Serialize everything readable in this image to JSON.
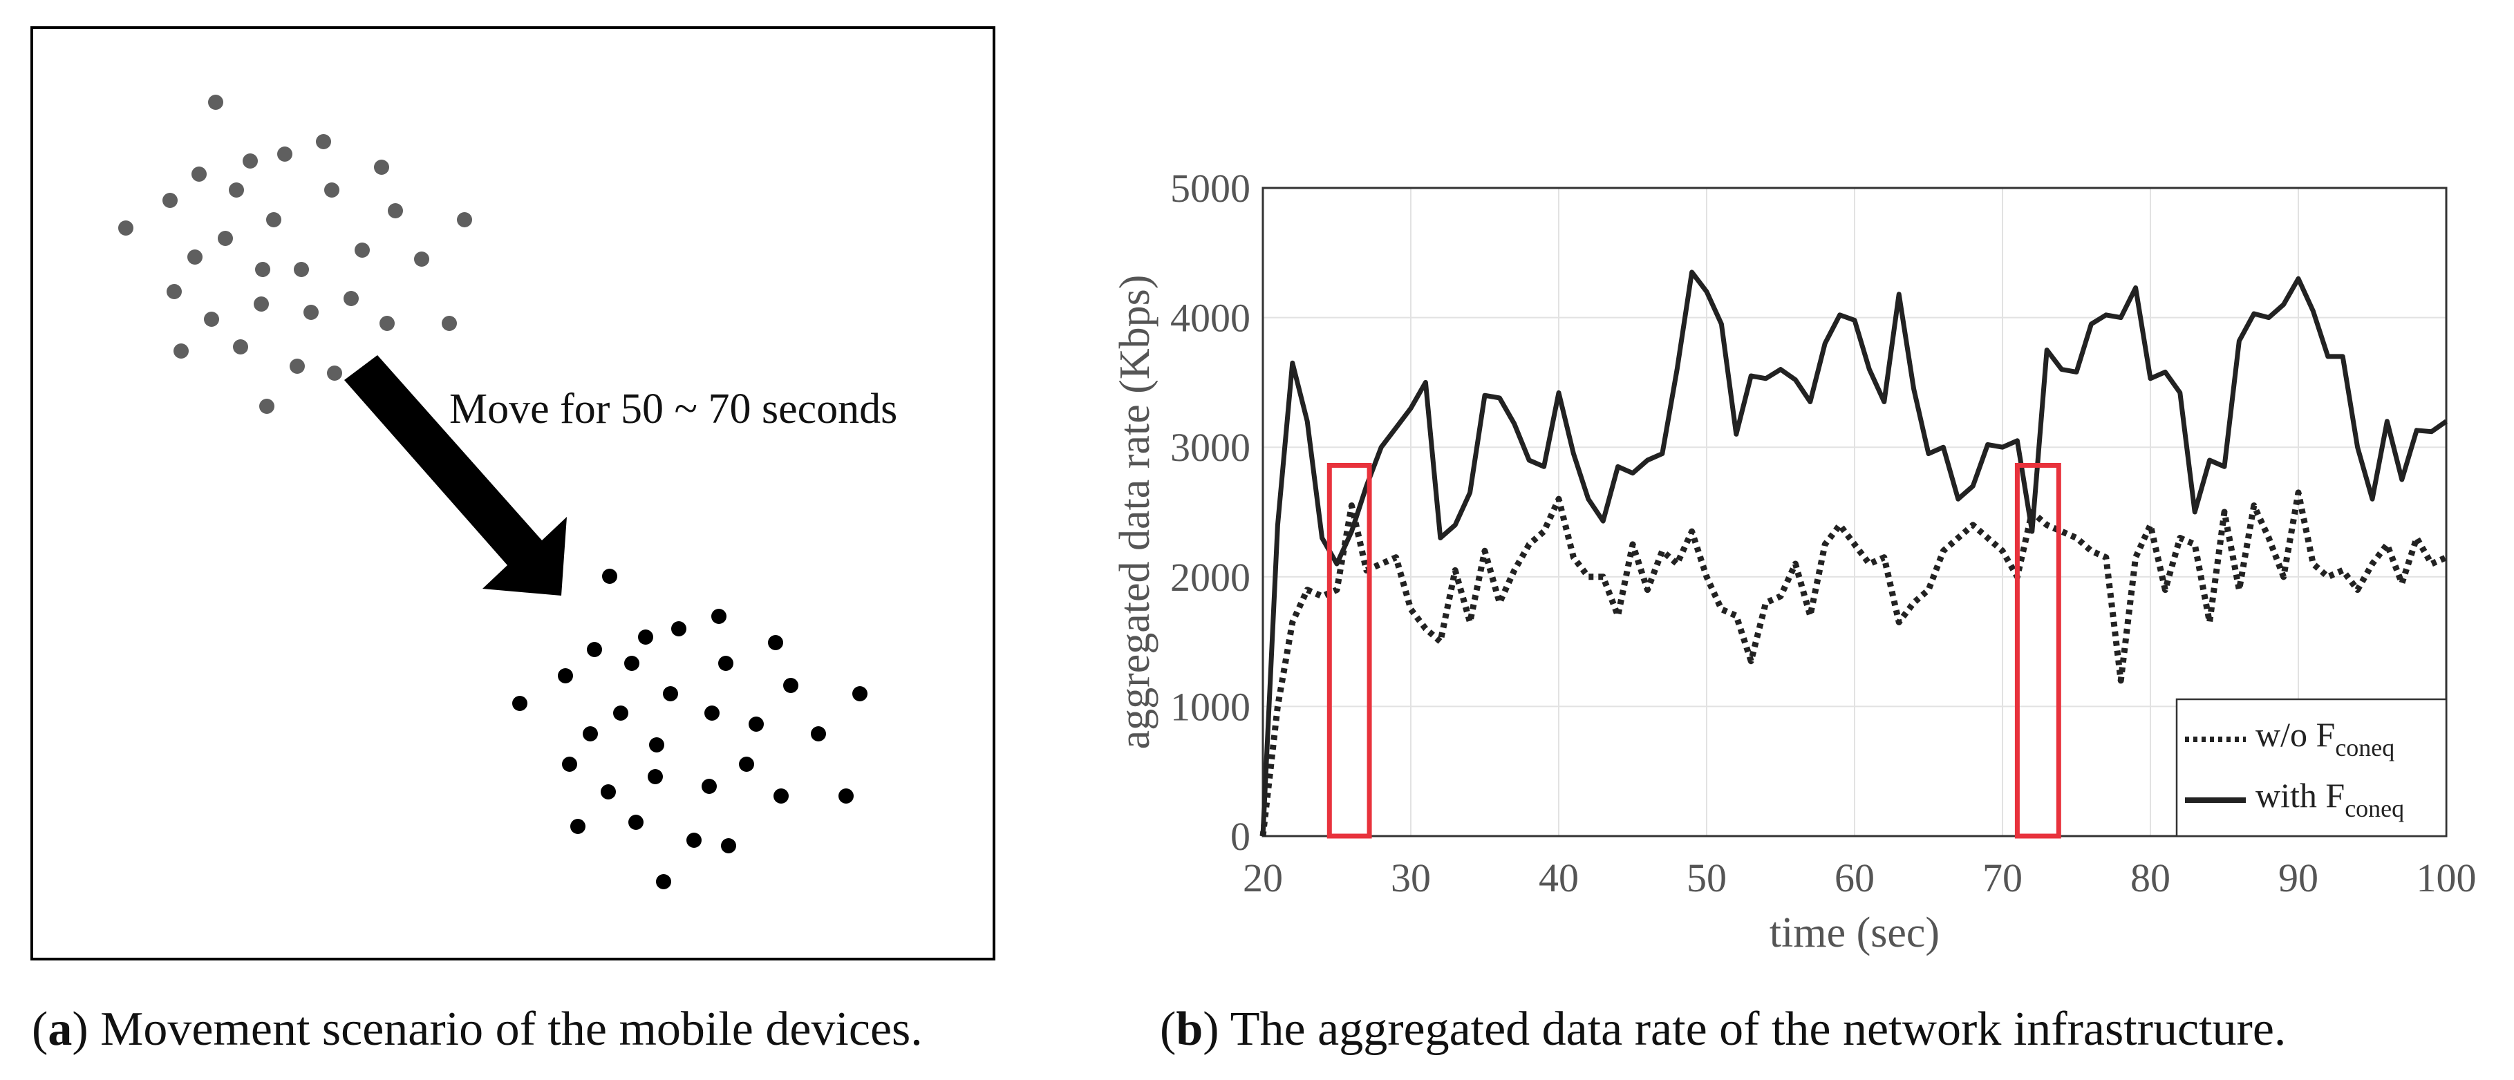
{
  "panel_a": {
    "annotation": "Move for 50 ~ 70 seconds",
    "caption_letter": "a",
    "caption_text": "Movement scenario of the mobile devices.",
    "colors": {
      "group_before": "#5f5f5f",
      "group_after": "#000000",
      "arrow": "#000000"
    }
  },
  "panel_b": {
    "caption_letter": "b",
    "caption_text": "The aggregated data rate of the network infrastructure."
  },
  "chart_data": {
    "type": "line",
    "xlabel": "time (sec)",
    "ylabel": "aggregated data rate (Kbps)",
    "xlim": [
      20,
      100
    ],
    "ylim": [
      0,
      5000
    ],
    "xticks": [
      20,
      30,
      40,
      50,
      60,
      70,
      80,
      90,
      100
    ],
    "yticks": [
      0,
      1000,
      2000,
      3000,
      4000,
      5000
    ],
    "grid": true,
    "legend_position": "bottom-right",
    "series": [
      {
        "name": "w/o F",
        "name_sub": "coneq",
        "style": "dotted",
        "color": "#222222",
        "x": [
          20,
          21,
          22,
          23,
          24,
          25,
          26,
          27,
          28,
          29,
          30,
          31,
          32,
          33,
          34,
          35,
          36,
          37,
          38,
          39,
          40,
          41,
          42,
          43,
          44,
          45,
          46,
          47,
          48,
          49,
          50,
          51,
          52,
          53,
          54,
          55,
          56,
          57,
          58,
          59,
          60,
          61,
          62,
          63,
          64,
          65,
          66,
          67,
          68,
          69,
          70,
          71,
          72,
          73,
          74,
          75,
          76,
          77,
          78,
          79,
          80,
          81,
          82,
          83,
          84,
          85,
          86,
          87,
          88,
          89,
          90,
          91,
          92,
          93,
          94,
          95,
          96,
          97,
          98,
          99,
          100
        ],
        "y": [
          0,
          1000,
          1650,
          1900,
          1850,
          1900,
          2550,
          2050,
          2100,
          2150,
          1750,
          1600,
          1500,
          2050,
          1650,
          2200,
          1800,
          2050,
          2250,
          2350,
          2600,
          2150,
          2000,
          2000,
          1700,
          2250,
          1900,
          2200,
          2100,
          2350,
          2000,
          1750,
          1700,
          1350,
          1800,
          1850,
          2100,
          1700,
          2250,
          2400,
          2250,
          2100,
          2150,
          1650,
          1800,
          1900,
          2200,
          2300,
          2400,
          2300,
          2200,
          2000,
          2500,
          2400,
          2350,
          2300,
          2200,
          2150,
          1200,
          2150,
          2400,
          1900,
          2300,
          2250,
          1650,
          2500,
          1900,
          2550,
          2300,
          2000,
          2650,
          2100,
          2000,
          2050,
          1900,
          2100,
          2250,
          1950,
          2300,
          2100,
          2150
        ]
      },
      {
        "name": "with F",
        "name_sub": "coneq",
        "style": "solid",
        "color": "#222222",
        "x": [
          20,
          21,
          22,
          23,
          24,
          25,
          26,
          27,
          28,
          29,
          30,
          31,
          32,
          33,
          34,
          35,
          36,
          37,
          38,
          39,
          40,
          41,
          42,
          43,
          44,
          45,
          46,
          47,
          48,
          49,
          50,
          51,
          52,
          53,
          54,
          55,
          56,
          57,
          58,
          59,
          60,
          61,
          62,
          63,
          64,
          65,
          66,
          67,
          68,
          69,
          70,
          71,
          72,
          73,
          74,
          75,
          76,
          77,
          78,
          79,
          80,
          81,
          82,
          83,
          84,
          85,
          86,
          87,
          88,
          89,
          90,
          91,
          92,
          93,
          94,
          95,
          96,
          97,
          98,
          99,
          100
        ],
        "y": [
          0,
          2400,
          3650,
          3200,
          2300,
          2100,
          2350,
          2700,
          3000,
          3150,
          3300,
          3500,
          2300,
          2400,
          2650,
          3400,
          3380,
          3180,
          2900,
          2850,
          3420,
          2950,
          2600,
          2430,
          2850,
          2800,
          2900,
          2950,
          3600,
          4350,
          4200,
          3950,
          3100,
          3550,
          3530,
          3600,
          3520,
          3350,
          3800,
          4020,
          3980,
          3600,
          3350,
          4180,
          3450,
          2950,
          3000,
          2600,
          2700,
          3020,
          3000,
          3050,
          2350,
          3750,
          3600,
          3580,
          3950,
          4020,
          4000,
          4230,
          3530,
          3580,
          3420,
          2500,
          2900,
          2850,
          3820,
          4030,
          4000,
          4100,
          4300,
          4050,
          3700,
          3700,
          3000,
          2600,
          3200,
          2750,
          3130,
          3120,
          3200
        ]
      }
    ],
    "highlight_boxes": [
      {
        "x": [
          24.5,
          27.2
        ],
        "y": [
          0,
          2860
        ],
        "color": "#e8323c"
      },
      {
        "x": [
          71,
          73.8
        ],
        "y": [
          0,
          2860
        ],
        "color": "#e8323c"
      }
    ]
  }
}
